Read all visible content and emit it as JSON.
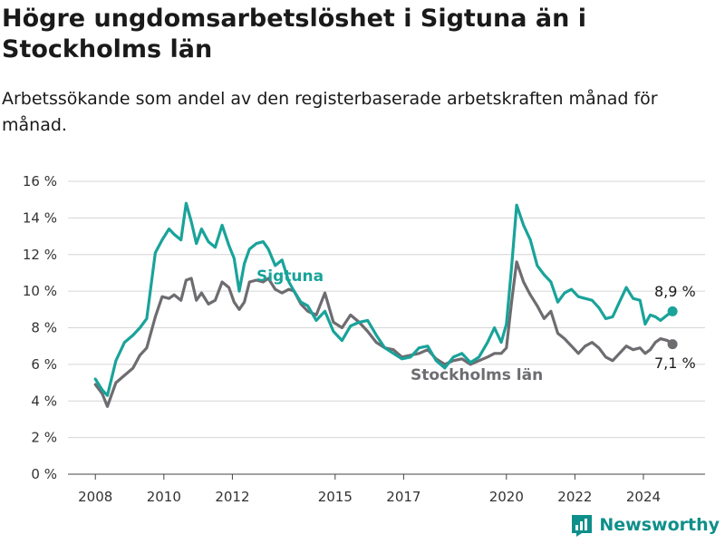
{
  "header": {
    "title": "Högre ungdomsarbetslöshet i Sigtuna än i Stockholms län",
    "subtitle": "Arbetssökande som andel av den registerbaserade arbetskraften månad för månad."
  },
  "brand": {
    "name": "Newsworthy"
  },
  "colors": {
    "sigtuna": "#19a39a",
    "stockholm": "#6e6c70",
    "grid": "#d6d6d6"
  },
  "chart_data": {
    "type": "line",
    "ylim": [
      0,
      16
    ],
    "xlim": [
      2007.2,
      2025.8
    ],
    "yticks": [
      {
        "value": 0,
        "label": "0 %"
      },
      {
        "value": 2,
        "label": "2 %"
      },
      {
        "value": 4,
        "label": "4 %"
      },
      {
        "value": 6,
        "label": "6 %"
      },
      {
        "value": 8,
        "label": "8 %"
      },
      {
        "value": 10,
        "label": "10 %"
      },
      {
        "value": 12,
        "label": "12 %"
      },
      {
        "value": 14,
        "label": "14 %"
      },
      {
        "value": 16,
        "label": "16 %"
      }
    ],
    "xticks": [
      {
        "value": 2008,
        "label": "2008"
      },
      {
        "value": 2010,
        "label": "2010"
      },
      {
        "value": 2012,
        "label": "2012"
      },
      {
        "value": 2015,
        "label": "2015"
      },
      {
        "value": 2017,
        "label": "2017"
      },
      {
        "value": 2020,
        "label": "2020"
      },
      {
        "value": 2022,
        "label": "2022"
      },
      {
        "value": 2024,
        "label": "2024"
      }
    ],
    "grid": true,
    "series": [
      {
        "name": "Sigtuna",
        "end_label": "8,9 %",
        "x": [
          2008.0,
          2008.2,
          2008.35,
          2008.6,
          2008.85,
          2009.1,
          2009.3,
          2009.5,
          2009.75,
          2009.95,
          2010.15,
          2010.3,
          2010.5,
          2010.65,
          2010.8,
          2010.95,
          2011.1,
          2011.3,
          2011.5,
          2011.7,
          2011.9,
          2012.05,
          2012.2,
          2012.35,
          2012.5,
          2012.7,
          2012.9,
          2013.05,
          2013.25,
          2013.45,
          2013.65,
          2013.8,
          2014.0,
          2014.2,
          2014.45,
          2014.7,
          2014.95,
          2015.2,
          2015.45,
          2015.7,
          2015.95,
          2016.2,
          2016.45,
          2016.7,
          2016.95,
          2017.2,
          2017.45,
          2017.7,
          2017.95,
          2018.2,
          2018.45,
          2018.7,
          2018.95,
          2019.2,
          2019.45,
          2019.65,
          2019.85,
          2020.0,
          2020.15,
          2020.3,
          2020.5,
          2020.7,
          2020.9,
          2021.1,
          2021.3,
          2021.5,
          2021.7,
          2021.9,
          2022.1,
          2022.3,
          2022.5,
          2022.7,
          2022.9,
          2023.1,
          2023.3,
          2023.5,
          2023.7,
          2023.9,
          2024.05,
          2024.2,
          2024.35,
          2024.5,
          2024.7,
          2024.85
        ],
        "values": [
          5.2,
          4.6,
          4.3,
          6.2,
          7.2,
          7.6,
          8.0,
          8.5,
          12.1,
          12.8,
          13.4,
          13.1,
          12.8,
          14.8,
          13.8,
          12.6,
          13.4,
          12.7,
          12.4,
          13.6,
          12.5,
          11.8,
          10.0,
          11.5,
          12.3,
          12.6,
          12.7,
          12.3,
          11.4,
          11.7,
          10.5,
          10.0,
          9.4,
          9.2,
          8.4,
          8.9,
          7.8,
          7.3,
          8.1,
          8.3,
          8.4,
          7.6,
          6.9,
          6.6,
          6.3,
          6.4,
          6.9,
          7.0,
          6.2,
          5.8,
          6.4,
          6.6,
          6.1,
          6.4,
          7.2,
          8.0,
          7.2,
          8.2,
          11.3,
          14.7,
          13.6,
          12.8,
          11.4,
          10.9,
          10.5,
          9.4,
          9.9,
          10.1,
          9.7,
          9.6,
          9.5,
          9.1,
          8.5,
          8.6,
          9.4,
          10.2,
          9.6,
          9.5,
          8.2,
          8.7,
          8.6,
          8.4,
          8.7,
          8.9
        ]
      },
      {
        "name": "Stockholms län",
        "end_label": "7,1 %",
        "x": [
          2008.0,
          2008.2,
          2008.35,
          2008.6,
          2008.85,
          2009.1,
          2009.3,
          2009.5,
          2009.75,
          2009.95,
          2010.15,
          2010.3,
          2010.5,
          2010.65,
          2010.8,
          2010.95,
          2011.1,
          2011.3,
          2011.5,
          2011.7,
          2011.9,
          2012.05,
          2012.2,
          2012.35,
          2012.5,
          2012.7,
          2012.9,
          2013.05,
          2013.25,
          2013.45,
          2013.65,
          2013.8,
          2014.0,
          2014.2,
          2014.45,
          2014.7,
          2014.95,
          2015.2,
          2015.45,
          2015.7,
          2015.95,
          2016.2,
          2016.45,
          2016.7,
          2016.95,
          2017.2,
          2017.45,
          2017.7,
          2017.95,
          2018.2,
          2018.45,
          2018.7,
          2018.95,
          2019.2,
          2019.45,
          2019.65,
          2019.85,
          2020.0,
          2020.15,
          2020.3,
          2020.5,
          2020.7,
          2020.9,
          2021.1,
          2021.3,
          2021.5,
          2021.7,
          2021.9,
          2022.1,
          2022.3,
          2022.5,
          2022.7,
          2022.9,
          2023.1,
          2023.3,
          2023.5,
          2023.7,
          2023.9,
          2024.05,
          2024.2,
          2024.35,
          2024.5,
          2024.7,
          2024.85
        ],
        "values": [
          4.9,
          4.4,
          3.7,
          5.0,
          5.4,
          5.8,
          6.5,
          6.9,
          8.6,
          9.7,
          9.6,
          9.8,
          9.5,
          10.6,
          10.7,
          9.5,
          9.9,
          9.3,
          9.5,
          10.5,
          10.2,
          9.4,
          9.0,
          9.4,
          10.5,
          10.6,
          10.5,
          10.7,
          10.1,
          9.9,
          10.1,
          10.0,
          9.3,
          8.9,
          8.7,
          9.9,
          8.3,
          8.0,
          8.7,
          8.3,
          7.8,
          7.2,
          6.9,
          6.8,
          6.4,
          6.5,
          6.6,
          6.8,
          6.3,
          6.0,
          6.2,
          6.3,
          6.0,
          6.2,
          6.4,
          6.6,
          6.6,
          6.9,
          9.4,
          11.6,
          10.5,
          9.8,
          9.2,
          8.5,
          8.9,
          7.7,
          7.4,
          7.0,
          6.6,
          7.0,
          7.2,
          6.9,
          6.4,
          6.2,
          6.6,
          7.0,
          6.8,
          6.9,
          6.6,
          6.8,
          7.2,
          7.4,
          7.3,
          7.1
        ]
      }
    ],
    "labels": {
      "sigtuna": "Sigtuna",
      "stockholm": "Stockholms län"
    }
  }
}
